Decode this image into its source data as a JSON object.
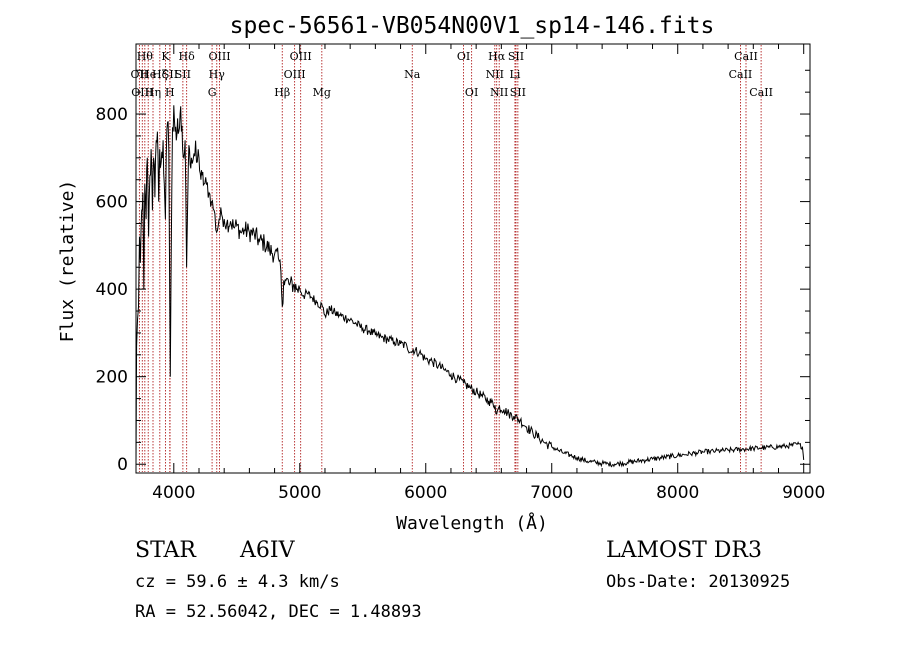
{
  "chart_data": {
    "type": "line",
    "title": "spec-56561-VB054N00V1_sp14-146.fits",
    "xlabel": "Wavelength (Å)",
    "ylabel": "Flux (relative)",
    "xlim": [
      3700,
      9050
    ],
    "ylim": [
      -20,
      960
    ],
    "x_ticks": [
      4000,
      5000,
      6000,
      7000,
      8000,
      9000
    ],
    "y_ticks": [
      0,
      200,
      400,
      600,
      800
    ],
    "grid": false,
    "line_color": "#000000",
    "marker_color": "#b22222",
    "series": [
      {
        "name": "flux",
        "points": [
          [
            3700,
            0
          ],
          [
            3705,
            270
          ],
          [
            3712,
            330
          ],
          [
            3720,
            360
          ],
          [
            3728,
            520
          ],
          [
            3735,
            460
          ],
          [
            3745,
            580
          ],
          [
            3755,
            620
          ],
          [
            3762,
            400
          ],
          [
            3770,
            640
          ],
          [
            3780,
            560
          ],
          [
            3790,
            700
          ],
          [
            3800,
            520
          ],
          [
            3810,
            660
          ],
          [
            3820,
            720
          ],
          [
            3830,
            580
          ],
          [
            3840,
            700
          ],
          [
            3850,
            610
          ],
          [
            3860,
            740
          ],
          [
            3870,
            760
          ],
          [
            3880,
            600
          ],
          [
            3888,
            720
          ],
          [
            3900,
            690
          ],
          [
            3915,
            740
          ],
          [
            3925,
            640
          ],
          [
            3933,
            560
          ],
          [
            3940,
            700
          ],
          [
            3950,
            780
          ],
          [
            3960,
            720
          ],
          [
            3968,
            360
          ],
          [
            3972,
            200
          ],
          [
            3978,
            420
          ],
          [
            3990,
            770
          ],
          [
            4000,
            820
          ],
          [
            4010,
            760
          ],
          [
            4020,
            740
          ],
          [
            4030,
            790
          ],
          [
            4040,
            760
          ],
          [
            4050,
            800
          ],
          [
            4060,
            760
          ],
          [
            4070,
            720
          ],
          [
            4080,
            700
          ],
          [
            4090,
            740
          ],
          [
            4095,
            620
          ],
          [
            4102,
            450
          ],
          [
            4108,
            560
          ],
          [
            4115,
            680
          ],
          [
            4125,
            720
          ],
          [
            4140,
            700
          ],
          [
            4160,
            710
          ],
          [
            4180,
            690
          ],
          [
            4200,
            700
          ],
          [
            4215,
            650
          ],
          [
            4225,
            660
          ],
          [
            4240,
            640
          ],
          [
            4260,
            640
          ],
          [
            4280,
            620
          ],
          [
            4300,
            600
          ],
          [
            4320,
            580
          ],
          [
            4340,
            530
          ],
          [
            4360,
            560
          ],
          [
            4380,
            570
          ],
          [
            4400,
            560
          ],
          [
            4420,
            550
          ],
          [
            4450,
            555
          ],
          [
            4480,
            540
          ],
          [
            4500,
            545
          ],
          [
            4530,
            530
          ],
          [
            4560,
            535
          ],
          [
            4600,
            530
          ],
          [
            4640,
            525
          ],
          [
            4680,
            510
          ],
          [
            4720,
            505
          ],
          [
            4760,
            490
          ],
          [
            4800,
            480
          ],
          [
            4830,
            470
          ],
          [
            4850,
            440
          ],
          [
            4861,
            360
          ],
          [
            4872,
            420
          ],
          [
            4890,
            420
          ],
          [
            4920,
            410
          ],
          [
            4950,
            410
          ],
          [
            4980,
            400
          ],
          [
            5000,
            400
          ],
          [
            5030,
            385
          ],
          [
            5060,
            390
          ],
          [
            5100,
            380
          ],
          [
            5140,
            370
          ],
          [
            5180,
            360
          ],
          [
            5200,
            340
          ],
          [
            5240,
            355
          ],
          [
            5280,
            345
          ],
          [
            5320,
            340
          ],
          [
            5360,
            335
          ],
          [
            5400,
            330
          ],
          [
            5450,
            320
          ],
          [
            5500,
            310
          ],
          [
            5550,
            305
          ],
          [
            5600,
            295
          ],
          [
            5650,
            290
          ],
          [
            5700,
            285
          ],
          [
            5750,
            280
          ],
          [
            5800,
            275
          ],
          [
            5850,
            270
          ],
          [
            5890,
            255
          ],
          [
            5900,
            262
          ],
          [
            5950,
            255
          ],
          [
            6000,
            240
          ],
          [
            6050,
            235
          ],
          [
            6100,
            225
          ],
          [
            6150,
            215
          ],
          [
            6200,
            205
          ],
          [
            6250,
            195
          ],
          [
            6300,
            185
          ],
          [
            6350,
            175
          ],
          [
            6400,
            165
          ],
          [
            6450,
            155
          ],
          [
            6500,
            145
          ],
          [
            6550,
            135
          ],
          [
            6563,
            115
          ],
          [
            6580,
            130
          ],
          [
            6620,
            125
          ],
          [
            6660,
            115
          ],
          [
            6700,
            110
          ],
          [
            6750,
            100
          ],
          [
            6800,
            85
          ],
          [
            6850,
            72
          ],
          [
            6900,
            60
          ],
          [
            6950,
            48
          ],
          [
            7000,
            40
          ],
          [
            7050,
            32
          ],
          [
            7100,
            25
          ],
          [
            7150,
            20
          ],
          [
            7200,
            15
          ],
          [
            7250,
            10
          ],
          [
            7300,
            6
          ],
          [
            7350,
            4
          ],
          [
            7400,
            2
          ],
          [
            7450,
            1
          ],
          [
            7500,
            0
          ],
          [
            7550,
            2
          ],
          [
            7600,
            4
          ],
          [
            7650,
            6
          ],
          [
            7700,
            8
          ],
          [
            7750,
            10
          ],
          [
            7800,
            12
          ],
          [
            7850,
            14
          ],
          [
            7900,
            16
          ],
          [
            7950,
            18
          ],
          [
            8000,
            20
          ],
          [
            8050,
            22
          ],
          [
            8100,
            24
          ],
          [
            8150,
            26
          ],
          [
            8200,
            28
          ],
          [
            8250,
            29
          ],
          [
            8300,
            30
          ],
          [
            8350,
            31
          ],
          [
            8400,
            32
          ],
          [
            8450,
            33
          ],
          [
            8500,
            34
          ],
          [
            8550,
            35
          ],
          [
            8600,
            36
          ],
          [
            8650,
            37
          ],
          [
            8700,
            38
          ],
          [
            8750,
            39
          ],
          [
            8800,
            40
          ],
          [
            8850,
            41
          ],
          [
            8900,
            43
          ],
          [
            8950,
            46
          ],
          [
            8990,
            40
          ],
          [
            9000,
            10
          ]
        ]
      }
    ],
    "line_markers": [
      {
        "wavelength": 3727,
        "label": "OII",
        "row": 1
      },
      {
        "wavelength": 3750,
        "label": "OIII",
        "row": 2
      },
      {
        "wavelength": 3770,
        "label": "Hθ",
        "row": 0
      },
      {
        "wavelength": 3797,
        "label": "He",
        "row": 1
      },
      {
        "wavelength": 3835,
        "label": "Hη",
        "row": 2
      },
      {
        "wavelength": 3889,
        "label": "Hζ",
        "row": 1
      },
      {
        "wavelength": 3934,
        "label": "K",
        "row": 0
      },
      {
        "wavelength": 3968,
        "label": "H",
        "row": 2
      },
      {
        "wavelength": 3970,
        "label": "SII",
        "row": 1
      },
      {
        "wavelength": 4102,
        "label": "Hδ",
        "row": 0
      },
      {
        "wavelength": 4072,
        "label": "SII",
        "row": 1
      },
      {
        "wavelength": 4304,
        "label": "G",
        "row": 2
      },
      {
        "wavelength": 4341,
        "label": "Hγ",
        "row": 1
      },
      {
        "wavelength": 4363,
        "label": "OIII",
        "row": 0
      },
      {
        "wavelength": 4861,
        "label": "Hβ",
        "row": 2
      },
      {
        "wavelength": 4959,
        "label": "OIII",
        "row": 1
      },
      {
        "wavelength": 5007,
        "label": "OIII",
        "row": 0
      },
      {
        "wavelength": 5175,
        "label": "Mg",
        "row": 2
      },
      {
        "wavelength": 5893,
        "label": "Na",
        "row": 1
      },
      {
        "wavelength": 6300,
        "label": "OI",
        "row": 0
      },
      {
        "wavelength": 6364,
        "label": "OI",
        "row": 2
      },
      {
        "wavelength": 6548,
        "label": "NII",
        "row": 1
      },
      {
        "wavelength": 6563,
        "label": "Hα",
        "row": 0
      },
      {
        "wavelength": 6583,
        "label": "NII",
        "row": 2
      },
      {
        "wavelength": 6708,
        "label": "Li",
        "row": 1
      },
      {
        "wavelength": 6716,
        "label": "SII",
        "row": 0
      },
      {
        "wavelength": 6731,
        "label": "SII",
        "row": 2
      },
      {
        "wavelength": 8498,
        "label": "CaII",
        "row": 1
      },
      {
        "wavelength": 8542,
        "label": "CaII",
        "row": 0
      },
      {
        "wavelength": 8662,
        "label": "CaII",
        "row": 2
      }
    ]
  },
  "info": {
    "object_type": "STAR",
    "subclass": "A6IV",
    "survey": "LAMOST DR3",
    "cz": "cz = 59.6 ± 4.3 km/s",
    "obs_date": "Obs-Date: 20130925",
    "coords": "RA =  52.56042, DEC =    1.48893"
  }
}
